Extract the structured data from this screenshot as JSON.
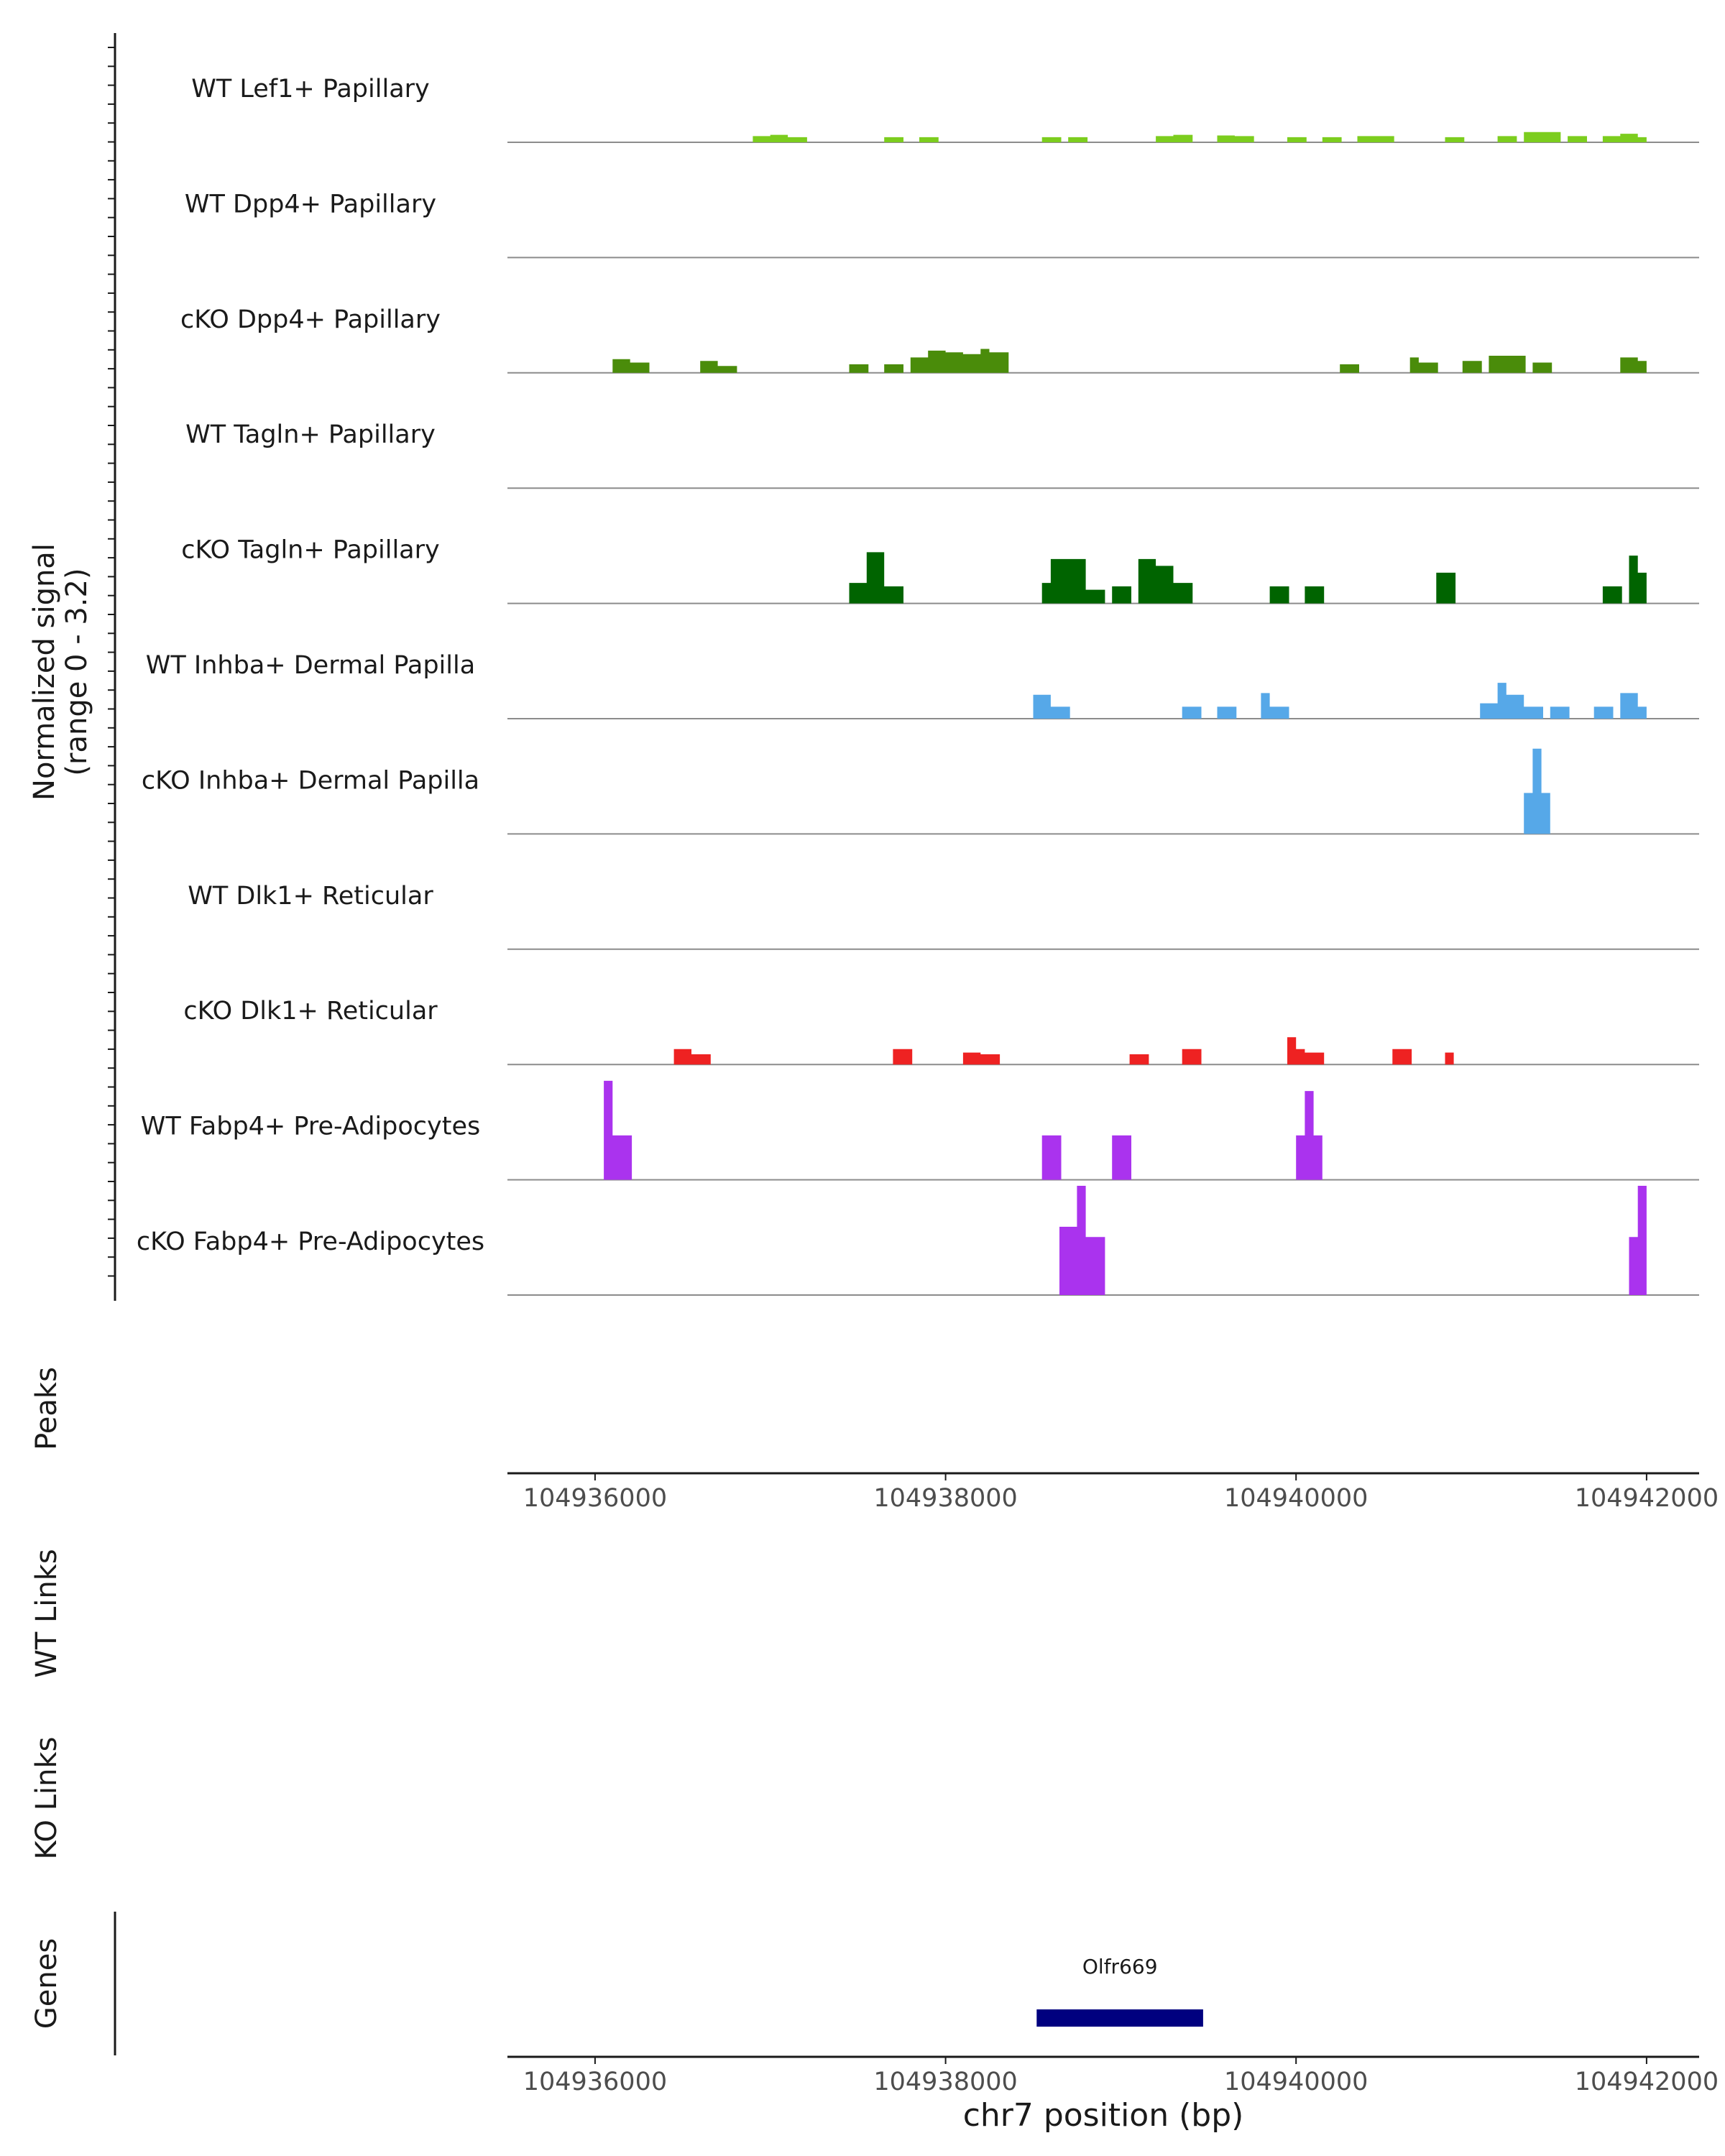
{
  "chart_data": {
    "type": "area",
    "title": "",
    "ylabel": "Normalized signal",
    "ylabel_range": "(range 0 - 3.2)",
    "ylim": [
      0,
      3.2
    ],
    "xlim": [
      104935500,
      104942300
    ],
    "xlabel": "chr7 position (bp)",
    "xticks": [
      104936000,
      104938000,
      104940000,
      104942000
    ],
    "xtick_labels": [
      "104936000",
      "104938000",
      "104940000",
      "104942000"
    ],
    "tracks": [
      {
        "name": "WT Lef1+ Papillary",
        "color": "#7CCD1E",
        "segments": [
          [
            104936900,
            0.18
          ],
          [
            104937000,
            0.22
          ],
          [
            104937100,
            0.15
          ],
          [
            104937650,
            0.15
          ],
          [
            104937850,
            0.15
          ],
          [
            104938550,
            0.15
          ],
          [
            104938700,
            0.15
          ],
          [
            104939200,
            0.18
          ],
          [
            104939300,
            0.22
          ],
          [
            104939550,
            0.2
          ],
          [
            104939650,
            0.18
          ],
          [
            104939950,
            0.15
          ],
          [
            104940150,
            0.15
          ],
          [
            104940350,
            0.18
          ],
          [
            104940450,
            0.18
          ],
          [
            104940850,
            0.15
          ],
          [
            104941150,
            0.18
          ],
          [
            104941300,
            0.3
          ],
          [
            104941400,
            0.3
          ],
          [
            104941550,
            0.18
          ],
          [
            104941750,
            0.18
          ],
          [
            104941850,
            0.25
          ],
          [
            104941950,
            0.15
          ]
        ]
      },
      {
        "name": "WT Dpp4+ Papillary",
        "color": "#4A8C0A",
        "segments": []
      },
      {
        "name": "cKO Dpp4+ Papillary",
        "color": "#4A8C0A",
        "segments": [
          [
            104936100,
            0.4
          ],
          [
            104936200,
            0.3
          ],
          [
            104936600,
            0.35
          ],
          [
            104936700,
            0.2
          ],
          [
            104937450,
            0.25
          ],
          [
            104937650,
            0.25
          ],
          [
            104937800,
            0.45
          ],
          [
            104937900,
            0.65
          ],
          [
            104938000,
            0.6
          ],
          [
            104938100,
            0.55
          ],
          [
            104938200,
            0.7
          ],
          [
            104938250,
            0.6
          ],
          [
            104940250,
            0.25
          ],
          [
            104940650,
            0.45
          ],
          [
            104940700,
            0.3
          ],
          [
            104940950,
            0.35
          ],
          [
            104941100,
            0.5
          ],
          [
            104941200,
            0.5
          ],
          [
            104941350,
            0.3
          ],
          [
            104941850,
            0.45
          ],
          [
            104941950,
            0.35
          ]
        ]
      },
      {
        "name": "WT Tagln+ Papillary",
        "color": "#006400",
        "segments": []
      },
      {
        "name": "cKO Tagln+ Papillary",
        "color": "#006400",
        "segments": [
          [
            104937450,
            0.6
          ],
          [
            104937550,
            1.5
          ],
          [
            104937650,
            0.5
          ],
          [
            104938550,
            0.6
          ],
          [
            104938600,
            1.3
          ],
          [
            104938700,
            1.3
          ],
          [
            104938800,
            0.4
          ],
          [
            104938950,
            0.5
          ],
          [
            104939100,
            1.3
          ],
          [
            104939200,
            1.1
          ],
          [
            104939300,
            0.6
          ],
          [
            104939850,
            0.5
          ],
          [
            104940050,
            0.5
          ],
          [
            104940800,
            0.9
          ],
          [
            104941750,
            0.5
          ],
          [
            104941900,
            1.4
          ],
          [
            104941950,
            0.9
          ]
        ]
      },
      {
        "name": "WT Inhba+ Dermal Papilla",
        "color": "#56A8E8",
        "segments": [
          [
            104938500,
            0.7
          ],
          [
            104938600,
            0.35
          ],
          [
            104939350,
            0.35
          ],
          [
            104939550,
            0.35
          ],
          [
            104939800,
            0.75
          ],
          [
            104939850,
            0.35
          ],
          [
            104941050,
            0.45
          ],
          [
            104941150,
            1.05
          ],
          [
            104941200,
            0.7
          ],
          [
            104941300,
            0.35
          ],
          [
            104941450,
            0.35
          ],
          [
            104941700,
            0.35
          ],
          [
            104941850,
            0.75
          ],
          [
            104941950,
            0.35
          ]
        ]
      },
      {
        "name": "cKO Inhba+ Dermal Papilla",
        "color": "#56A8E8",
        "segments": [
          [
            104941300,
            1.2
          ],
          [
            104941350,
            2.5
          ],
          [
            104941400,
            1.2
          ]
        ]
      },
      {
        "name": "WT Dlk1+ Reticular",
        "color": "#EE2222",
        "segments": []
      },
      {
        "name": "cKO Dlk1+ Reticular",
        "color": "#EE2222",
        "segments": [
          [
            104936450,
            0.45
          ],
          [
            104936550,
            0.3
          ],
          [
            104937700,
            0.45
          ],
          [
            104938100,
            0.35
          ],
          [
            104938200,
            0.3
          ],
          [
            104939050,
            0.3
          ],
          [
            104939350,
            0.45
          ],
          [
            104939950,
            0.8
          ],
          [
            104940000,
            0.45
          ],
          [
            104940050,
            0.35
          ],
          [
            104940550,
            0.45
          ],
          [
            104940850,
            0.35
          ]
        ]
      },
      {
        "name": "WT Fabp4+ Pre-Adipocytes",
        "color": "#AA33EE",
        "segments": [
          [
            104936050,
            2.9
          ],
          [
            104936100,
            1.3
          ],
          [
            104938550,
            1.3
          ],
          [
            104938950,
            1.3
          ],
          [
            104940000,
            1.3
          ],
          [
            104940050,
            2.6
          ],
          [
            104940100,
            1.3
          ]
        ]
      },
      {
        "name": "cKO Fabp4+ Pre-Adipocytes",
        "color": "#AA33EE",
        "segments": [
          [
            104938650,
            2.0
          ],
          [
            104938750,
            3.2
          ],
          [
            104938800,
            1.7
          ],
          [
            104941900,
            1.7
          ],
          [
            104941950,
            3.2
          ]
        ]
      }
    ],
    "genes": [
      {
        "name": "Olfr669",
        "start": 104938520,
        "end": 104939470,
        "color": "#00007F"
      }
    ]
  },
  "panels": {
    "peaks_label": "Peaks",
    "wt_links_label": "WT Links",
    "ko_links_label": "KO Links",
    "genes_label": "Genes"
  }
}
